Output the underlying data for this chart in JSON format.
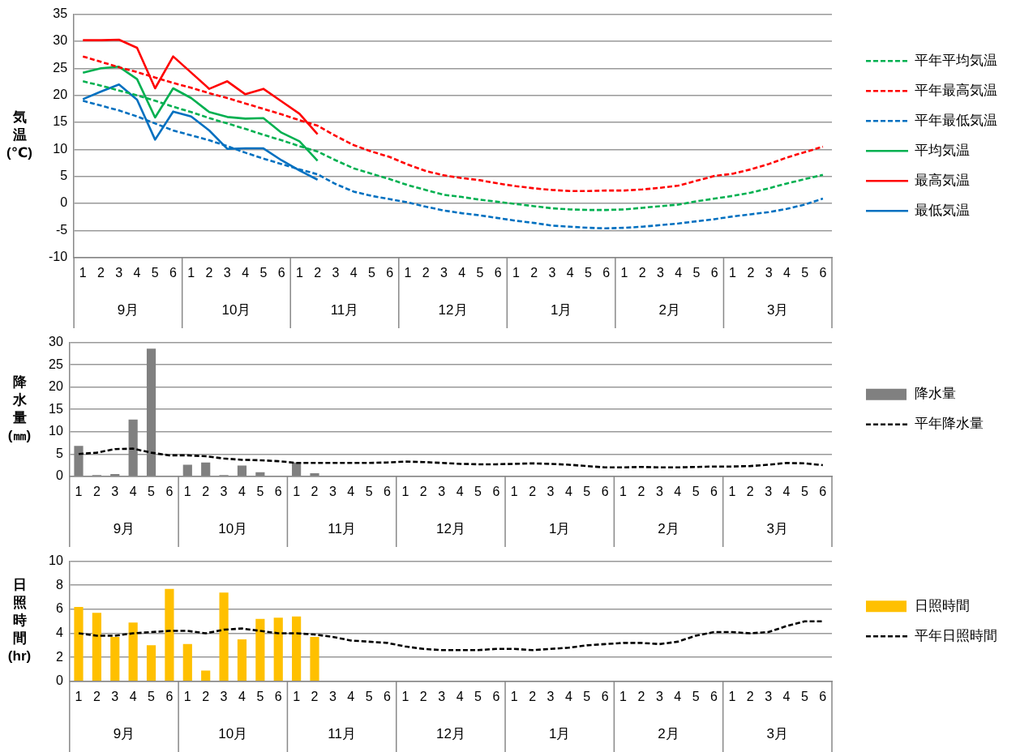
{
  "chart_data": [
    {
      "type": "line",
      "ylabel": "気温(℃)",
      "categories": [
        "1",
        "2",
        "3",
        "4",
        "5",
        "6",
        "1",
        "2",
        "3",
        "4",
        "5",
        "6",
        "1",
        "2",
        "3",
        "4",
        "5",
        "6",
        "1",
        "2",
        "3",
        "4",
        "5",
        "6",
        "1",
        "2",
        "3",
        "4",
        "5",
        "6",
        "1",
        "2",
        "3",
        "4",
        "5",
        "6",
        "1",
        "2",
        "3",
        "4",
        "5",
        "6"
      ],
      "annotations": [
        "9月",
        "10月",
        "11月",
        "12月",
        "1月",
        "2月",
        "3月"
      ],
      "ylim": [
        -10,
        35
      ],
      "yticks": [
        -10,
        -5,
        0,
        5,
        10,
        15,
        20,
        25,
        30,
        35
      ],
      "grid": "y",
      "legend": "right",
      "series": [
        {
          "name": "平年平均気温",
          "color": "#00b050",
          "line_style": "dashed",
          "values": [
            22.6,
            21.8,
            20.9,
            20.0,
            19.0,
            17.9,
            16.9,
            15.8,
            14.8,
            13.8,
            12.7,
            11.7,
            10.6,
            9.6,
            8.0,
            6.5,
            5.5,
            4.5,
            3.4,
            2.5,
            1.6,
            1.2,
            0.7,
            0.3,
            -0.1,
            -0.5,
            -0.9,
            -1.1,
            -1.2,
            -1.2,
            -1.1,
            -0.8,
            -0.5,
            -0.2,
            0.4,
            0.9,
            1.4,
            2.0,
            2.8,
            3.7,
            4.5,
            5.3
          ]
        },
        {
          "name": "平年最高気温",
          "color": "#ff0000",
          "line_style": "dashed",
          "values": [
            27.2,
            26.2,
            25.2,
            24.3,
            23.3,
            22.3,
            21.4,
            20.4,
            19.5,
            18.5,
            17.5,
            16.5,
            15.4,
            14.4,
            12.5,
            10.8,
            9.6,
            8.6,
            7.2,
            6.0,
            5.2,
            4.7,
            4.3,
            3.7,
            3.2,
            2.8,
            2.5,
            2.3,
            2.3,
            2.4,
            2.4,
            2.6,
            2.9,
            3.3,
            4.2,
            5.1,
            5.5,
            6.3,
            7.3,
            8.5,
            9.5,
            10.5
          ]
        },
        {
          "name": "平年最低気温",
          "color": "#0070c0",
          "line_style": "dashed",
          "values": [
            19.0,
            18.1,
            17.2,
            16.1,
            14.8,
            13.5,
            12.6,
            11.7,
            10.6,
            9.4,
            8.3,
            7.3,
            6.3,
            5.4,
            3.6,
            2.2,
            1.4,
            0.8,
            0.2,
            -0.6,
            -1.3,
            -1.8,
            -2.2,
            -2.7,
            -3.2,
            -3.6,
            -4.1,
            -4.3,
            -4.5,
            -4.6,
            -4.5,
            -4.3,
            -4.0,
            -3.7,
            -3.3,
            -2.9,
            -2.4,
            -2.0,
            -1.6,
            -1.0,
            -0.2,
            0.9
          ]
        },
        {
          "name": "平均気温",
          "color": "#00b050",
          "line_style": "solid",
          "values": [
            24.2,
            25.0,
            25.3,
            23.0,
            15.9,
            21.3,
            19.5,
            16.9,
            16.0,
            15.7,
            15.8,
            13.1,
            11.5,
            7.9,
            null,
            null,
            null,
            null,
            null,
            null,
            null,
            null,
            null,
            null,
            null,
            null,
            null,
            null,
            null,
            null,
            null,
            null,
            null,
            null,
            null,
            null,
            null,
            null,
            null,
            null,
            null,
            null
          ]
        },
        {
          "name": "最高気温",
          "color": "#ff0000",
          "line_style": "solid",
          "values": [
            30.2,
            30.2,
            30.3,
            28.8,
            21.3,
            27.2,
            24.2,
            21.2,
            22.6,
            20.2,
            21.2,
            18.9,
            16.6,
            12.8,
            null,
            null,
            null,
            null,
            null,
            null,
            null,
            null,
            null,
            null,
            null,
            null,
            null,
            null,
            null,
            null,
            null,
            null,
            null,
            null,
            null,
            null,
            null,
            null,
            null,
            null,
            null,
            null
          ]
        },
        {
          "name": "最低気温",
          "color": "#0070c0",
          "line_style": "solid",
          "values": [
            19.3,
            20.7,
            22.0,
            19.2,
            11.8,
            17.0,
            16.1,
            13.5,
            10.1,
            10.2,
            10.2,
            8.0,
            6.1,
            4.4,
            null,
            null,
            null,
            null,
            null,
            null,
            null,
            null,
            null,
            null,
            null,
            null,
            null,
            null,
            null,
            null,
            null,
            null,
            null,
            null,
            null,
            null,
            null,
            null,
            null,
            null,
            null,
            null
          ]
        }
      ]
    },
    {
      "type": "bar",
      "ylabel": "降水量(㎜)",
      "categories": [
        "1",
        "2",
        "3",
        "4",
        "5",
        "6",
        "1",
        "2",
        "3",
        "4",
        "5",
        "6",
        "1",
        "2",
        "3",
        "4",
        "5",
        "6",
        "1",
        "2",
        "3",
        "4",
        "5",
        "6",
        "1",
        "2",
        "3",
        "4",
        "5",
        "6",
        "1",
        "2",
        "3",
        "4",
        "5",
        "6",
        "1",
        "2",
        "3",
        "4",
        "5",
        "6"
      ],
      "annotations": [
        "9月",
        "10月",
        "11月",
        "12月",
        "1月",
        "2月",
        "3月"
      ],
      "ylim": [
        0,
        30
      ],
      "yticks": [
        0,
        5,
        10,
        15,
        20,
        25,
        30
      ],
      "grid": "y",
      "legend": "right",
      "series": [
        {
          "name": "降水量",
          "type": "bar",
          "color": "#808080",
          "values": [
            6.8,
            0.3,
            0.5,
            12.7,
            28.6,
            0,
            2.6,
            3.1,
            0.3,
            2.4,
            0.9,
            0,
            3.1,
            0.7,
            null,
            null,
            null,
            null,
            null,
            null,
            null,
            null,
            null,
            null,
            null,
            null,
            null,
            null,
            null,
            null,
            null,
            null,
            null,
            null,
            null,
            null,
            null,
            null,
            null,
            null,
            null,
            null
          ]
        },
        {
          "name": "平年降水量",
          "type": "line",
          "color": "#000000",
          "line_style": "dashed",
          "values": [
            5.0,
            5.3,
            6.1,
            6.2,
            5.3,
            4.7,
            4.7,
            4.5,
            4.0,
            3.7,
            3.6,
            3.4,
            3.0,
            3.0,
            3.0,
            3.0,
            3.0,
            3.1,
            3.3,
            3.2,
            3.0,
            2.8,
            2.7,
            2.7,
            2.8,
            2.9,
            2.8,
            2.6,
            2.3,
            2.0,
            2.0,
            2.1,
            2.0,
            2.0,
            2.1,
            2.2,
            2.2,
            2.3,
            2.6,
            3.0,
            2.9,
            2.5
          ]
        }
      ]
    },
    {
      "type": "bar",
      "ylabel": "日照時間(hr)",
      "categories": [
        "1",
        "2",
        "3",
        "4",
        "5",
        "6",
        "1",
        "2",
        "3",
        "4",
        "5",
        "6",
        "1",
        "2",
        "3",
        "4",
        "5",
        "6",
        "1",
        "2",
        "3",
        "4",
        "5",
        "6",
        "1",
        "2",
        "3",
        "4",
        "5",
        "6",
        "1",
        "2",
        "3",
        "4",
        "5",
        "6",
        "1",
        "2",
        "3",
        "4",
        "5",
        "6"
      ],
      "annotations": [
        "9月",
        "10月",
        "11月",
        "12月",
        "1月",
        "2月",
        "3月"
      ],
      "ylim": [
        0,
        10
      ],
      "yticks": [
        0,
        2,
        4,
        6,
        8,
        10
      ],
      "grid": "y",
      "legend": "right",
      "series": [
        {
          "name": "日照時間",
          "type": "bar",
          "color": "#ffc000",
          "values": [
            6.2,
            5.7,
            3.7,
            4.9,
            3.0,
            7.7,
            3.1,
            0.9,
            7.4,
            3.5,
            5.2,
            5.3,
            5.4,
            3.7,
            null,
            null,
            null,
            null,
            null,
            null,
            null,
            null,
            null,
            null,
            null,
            null,
            null,
            null,
            null,
            null,
            null,
            null,
            null,
            null,
            null,
            null,
            null,
            null,
            null,
            null,
            null,
            null
          ]
        },
        {
          "name": "平年日照時間",
          "type": "line",
          "color": "#000000",
          "line_style": "dashed",
          "values": [
            4.0,
            3.8,
            3.8,
            4.0,
            4.1,
            4.2,
            4.2,
            4.0,
            4.3,
            4.4,
            4.2,
            4.0,
            4.0,
            3.9,
            3.7,
            3.4,
            3.3,
            3.2,
            2.9,
            2.7,
            2.6,
            2.6,
            2.6,
            2.7,
            2.7,
            2.6,
            2.7,
            2.8,
            3.0,
            3.1,
            3.2,
            3.2,
            3.1,
            3.3,
            3.8,
            4.1,
            4.1,
            4.0,
            4.1,
            4.6,
            5.0,
            5.0
          ]
        }
      ]
    }
  ]
}
